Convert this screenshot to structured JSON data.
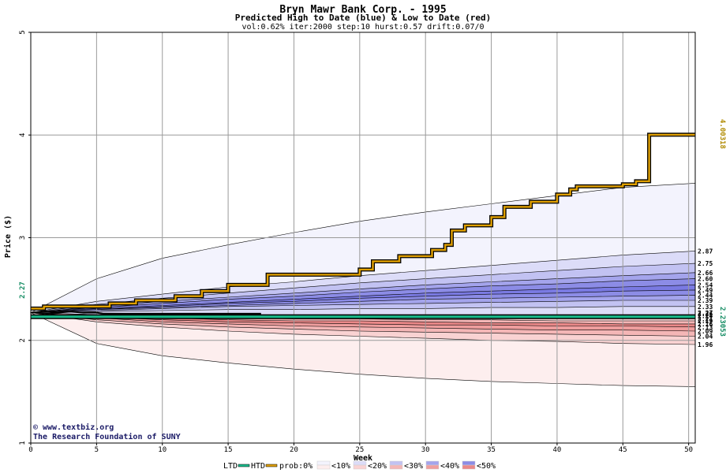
{
  "chart_data": {
    "type": "area",
    "title": "Bryn Mawr Bank Corp. - 1995",
    "subtitle": "Predicted High to Date (blue) &  Low to Date (red)",
    "params": "vol:0.62% iter:2000 step:10 hurst:0.57 drift:0.07/0",
    "xlabel": "Week",
    "ylabel": "Price ($)",
    "xlim": [
      0,
      50.5
    ],
    "ylim": [
      1,
      5
    ],
    "x_ticks": [
      0,
      5,
      10,
      15,
      20,
      25,
      30,
      35,
      40,
      45,
      50
    ],
    "y_ticks": [
      1,
      2,
      3,
      4,
      5
    ],
    "grid": true,
    "start_price_label": "2.27",
    "start_price": 2.27,
    "htd_label": "4.00318",
    "htd_value": 4.00318,
    "ltd_label": "2.23053",
    "ltd_value": 2.23053,
    "band_x": [
      0,
      5,
      10,
      15,
      20,
      25,
      30,
      35,
      40,
      45,
      50.5
    ],
    "upper_bands": [
      {
        "level": "<10%",
        "end_label": "",
        "color": "#f3f3fd",
        "values": [
          2.27,
          2.6,
          2.8,
          2.93,
          3.05,
          3.16,
          3.25,
          3.33,
          3.41,
          3.49,
          3.53
        ]
      },
      {
        "level": "<20%",
        "end_label": "2.87",
        "color": "#dcdcf8",
        "values": [
          2.27,
          2.38,
          2.45,
          2.52,
          2.57,
          2.63,
          2.68,
          2.73,
          2.78,
          2.83,
          2.87
        ]
      },
      {
        "level": "<30%",
        "end_label": "2.75",
        "color": "#c2c2f2",
        "values": [
          2.27,
          2.35,
          2.41,
          2.46,
          2.51,
          2.56,
          2.6,
          2.64,
          2.68,
          2.72,
          2.75
        ]
      },
      {
        "level": "<40%",
        "end_label": "2.66",
        "color": "#a4a4ec",
        "values": [
          2.27,
          2.33,
          2.38,
          2.42,
          2.46,
          2.5,
          2.54,
          2.57,
          2.6,
          2.63,
          2.66
        ]
      },
      {
        "level": "<50%",
        "end_label": "2.60",
        "color": "#8c8ce6",
        "values": [
          2.27,
          2.32,
          2.36,
          2.4,
          2.43,
          2.47,
          2.5,
          2.53,
          2.55,
          2.58,
          2.6
        ]
      },
      {
        "level": "",
        "end_label": "2.54",
        "color": "#7a7ae2",
        "values": [
          2.27,
          2.31,
          2.34,
          2.37,
          2.4,
          2.43,
          2.46,
          2.48,
          2.5,
          2.52,
          2.54
        ]
      },
      {
        "level": "",
        "end_label": "2.49",
        "color": "#8c8ce6",
        "values": [
          2.27,
          2.3,
          2.33,
          2.36,
          2.38,
          2.41,
          2.43,
          2.45,
          2.46,
          2.48,
          2.49
        ]
      },
      {
        "level": "",
        "end_label": "2.44",
        "color": "#a4a4ec",
        "values": [
          2.27,
          2.3,
          2.32,
          2.34,
          2.36,
          2.38,
          2.4,
          2.41,
          2.42,
          2.43,
          2.44
        ]
      },
      {
        "level": "",
        "end_label": "2.39",
        "color": "#c2c2f2",
        "values": [
          2.27,
          2.29,
          2.31,
          2.33,
          2.34,
          2.35,
          2.36,
          2.37,
          2.38,
          2.39,
          2.39
        ]
      },
      {
        "level": "",
        "end_label": "2.33",
        "color": "#dcdcf8",
        "values": [
          2.27,
          2.28,
          2.29,
          2.3,
          2.3,
          2.31,
          2.31,
          2.32,
          2.32,
          2.33,
          2.33
        ]
      }
    ],
    "upper_base": 2.25,
    "lower_bands": [
      {
        "level": "<10%",
        "end_label": "",
        "color": "#fdeeee",
        "values": [
          2.27,
          1.97,
          1.85,
          1.78,
          1.72,
          1.67,
          1.63,
          1.6,
          1.58,
          1.56,
          1.55
        ]
      },
      {
        "level": "<20%",
        "end_label": "1.96",
        "color": "#f9d2d2",
        "values": [
          2.27,
          2.18,
          2.13,
          2.09,
          2.06,
          2.04,
          2.02,
          2.0,
          1.99,
          1.97,
          1.96
        ]
      },
      {
        "level": "<30%",
        "end_label": "2.04",
        "color": "#f4b6b6",
        "values": [
          2.27,
          2.2,
          2.16,
          2.13,
          2.11,
          2.09,
          2.08,
          2.07,
          2.06,
          2.05,
          2.04
        ]
      },
      {
        "level": "<40%",
        "end_label": "2.09",
        "color": "#ef9e9e",
        "values": [
          2.27,
          2.22,
          2.18,
          2.16,
          2.14,
          2.13,
          2.12,
          2.11,
          2.1,
          2.1,
          2.09
        ]
      },
      {
        "level": "<50%",
        "end_label": "2.13",
        "color": "#ea8888",
        "values": [
          2.27,
          2.23,
          2.2,
          2.18,
          2.17,
          2.16,
          2.15,
          2.15,
          2.14,
          2.14,
          2.13
        ]
      },
      {
        "level": "",
        "end_label": "2.16",
        "color": "#f4b6b6",
        "values": [
          2.27,
          2.24,
          2.22,
          2.2,
          2.19,
          2.19,
          2.18,
          2.17,
          2.17,
          2.16,
          2.16
        ]
      },
      {
        "level": "",
        "end_label": "2.19",
        "color": "#f9d2d2",
        "values": [
          2.27,
          2.25,
          2.23,
          2.22,
          2.21,
          2.21,
          2.2,
          2.2,
          2.19,
          2.19,
          2.19
        ]
      }
    ],
    "lower_base": 2.23,
    "mid_labels": [
      "2.21",
      "2.24",
      "2.26",
      "2.27"
    ],
    "mid_values": [
      2.21,
      2.24,
      2.26,
      2.27
    ],
    "htd_series": {
      "name": "HTD",
      "color": "#e0a000",
      "x": [
        0,
        1,
        1,
        6,
        6,
        8,
        8,
        11,
        11,
        13,
        13,
        15,
        15,
        18,
        18,
        25,
        25,
        26,
        26,
        28,
        28,
        30.5,
        30.5,
        31.5,
        31.5,
        32,
        32,
        33,
        33,
        35,
        35,
        36,
        36,
        38,
        38,
        40,
        40,
        41,
        41,
        41.5,
        41.5,
        45,
        45,
        46,
        46,
        47,
        47,
        50.5
      ],
      "y": [
        2.31,
        2.31,
        2.33,
        2.33,
        2.36,
        2.36,
        2.39,
        2.39,
        2.43,
        2.43,
        2.48,
        2.48,
        2.54,
        2.54,
        2.64,
        2.64,
        2.69,
        2.69,
        2.77,
        2.77,
        2.82,
        2.82,
        2.88,
        2.88,
        2.93,
        2.93,
        3.07,
        3.07,
        3.12,
        3.12,
        3.2,
        3.2,
        3.3,
        3.3,
        3.35,
        3.35,
        3.42,
        3.42,
        3.47,
        3.47,
        3.5,
        3.5,
        3.52,
        3.52,
        3.55,
        3.55,
        4.003,
        4.003
      ]
    },
    "ltd_series": {
      "name": "LTD",
      "color": "#1abc8c",
      "x": [
        0,
        50.5
      ],
      "y": [
        2.23,
        2.23
      ]
    },
    "price_path": {
      "x": [
        0,
        1,
        2,
        3,
        4,
        5,
        5.5,
        8,
        12,
        17.5
      ],
      "y": [
        2.27,
        2.28,
        2.27,
        2.28,
        2.27,
        2.27,
        2.26,
        2.26,
        2.26,
        2.26
      ]
    },
    "legend": {
      "items": [
        "LTD",
        "HTD",
        "prob:0%",
        "<10%",
        "<20%",
        "<30%",
        "<40%",
        "<50%"
      ],
      "ltd_color": "#1abc8c",
      "htd_color": "#e0a000",
      "swatch_pairs": [
        [
          "#f3f3fd",
          "#fdeeee"
        ],
        [
          "#dcdcf8",
          "#f9d2d2"
        ],
        [
          "#c2c2f2",
          "#f4b6b6"
        ],
        [
          "#a4a4ec",
          "#ef9e9e"
        ],
        [
          "#8c8ce6",
          "#ea8888"
        ]
      ]
    }
  },
  "credits": {
    "site": "www.textbiz.org",
    "org": "The Research Foundation of SUNY"
  }
}
